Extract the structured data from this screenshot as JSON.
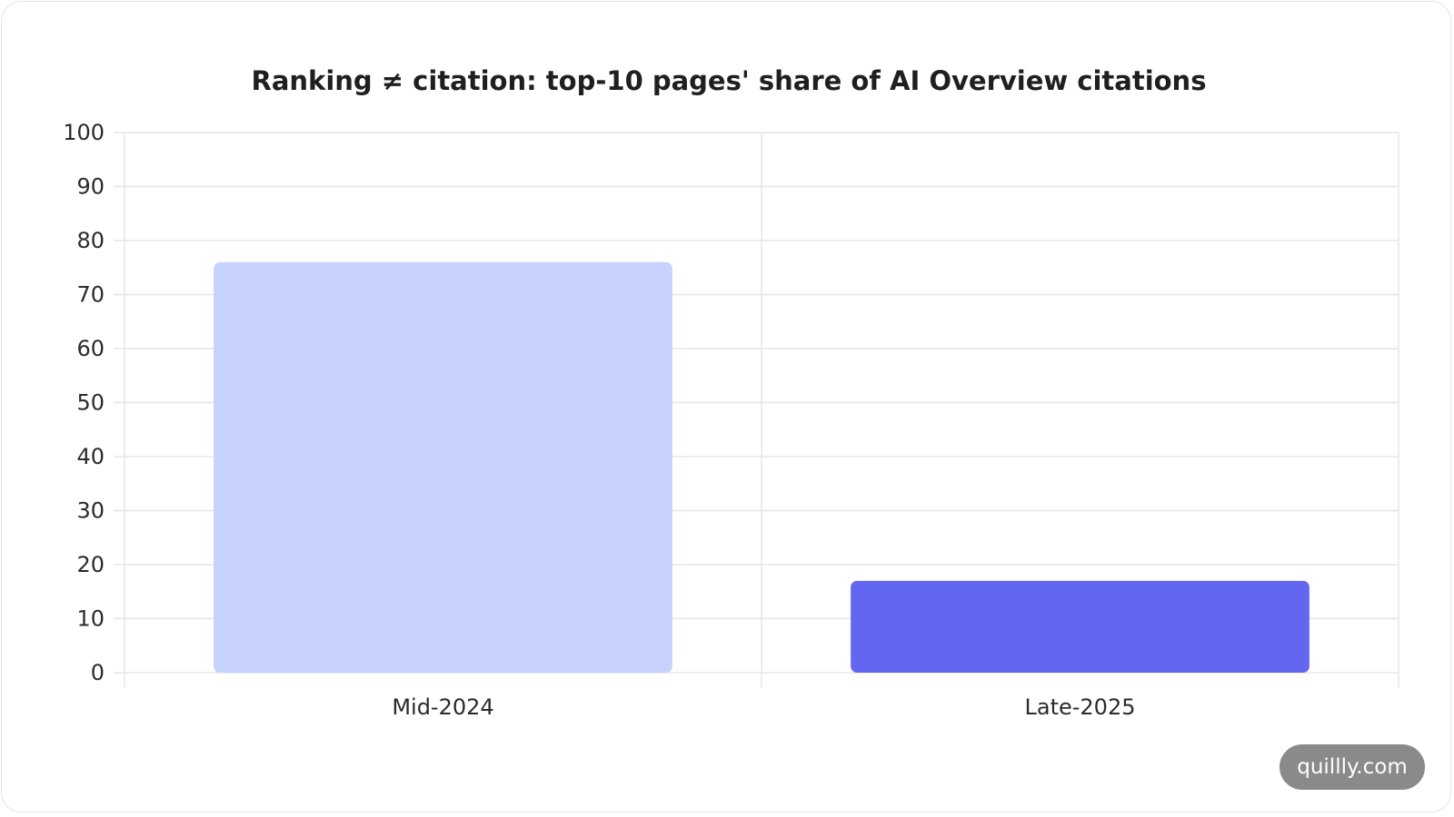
{
  "chart_data": {
    "type": "bar",
    "title": "Ranking ≠ citation: top-10 pages' share of AI Overview citations",
    "categories": [
      "Mid-2024",
      "Late-2025"
    ],
    "values": [
      76,
      17
    ],
    "bar_colors": [
      "#c7d2fe",
      "#6366f1"
    ],
    "xlabel": "",
    "ylabel": "",
    "ylim": [
      0,
      100
    ],
    "y_ticks": [
      0,
      10,
      20,
      30,
      40,
      50,
      60,
      70,
      80,
      90,
      100
    ],
    "grid": true,
    "legend": "none"
  },
  "watermark": "quillly.com"
}
